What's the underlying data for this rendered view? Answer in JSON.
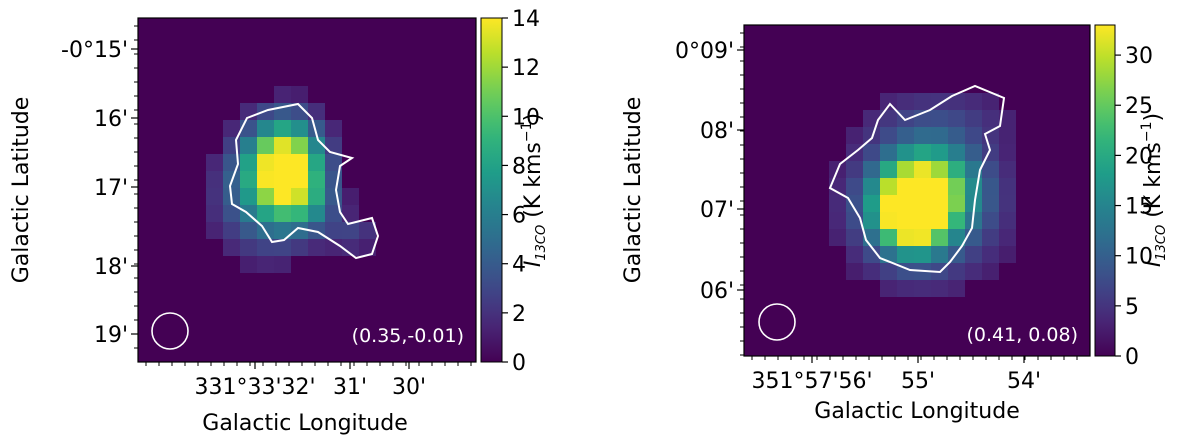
{
  "chart_data": [
    {
      "type": "heatmap",
      "xlabel": "Galactic Longitude",
      "ylabel": "Galactic Latitude",
      "colorbar_label": "I₁₃CO (K kms⁻¹)",
      "colorbar_label_parts": {
        "main": "I",
        "sub": "13CO",
        "unit": " (K kms",
        "sup": "−1",
        "close": ")"
      },
      "colormap": "viridis",
      "clim": [
        0,
        14
      ],
      "colorbar_ticks": [
        "0",
        "2",
        "4",
        "6",
        "8",
        "10",
        "12",
        "14"
      ],
      "x_ticks": [
        "331°33'32'",
        "31'",
        "30'"
      ],
      "y_ticks": [
        "-0°15'",
        "16'",
        "17'",
        "18'",
        "19'"
      ],
      "annotation": "(0.35,-0.01)",
      "beam": "circle",
      "peak_value": 14,
      "contour_color": "#ffffff"
    },
    {
      "type": "heatmap",
      "xlabel": "Galactic Longitude",
      "ylabel": "Galactic Latitude",
      "colorbar_label": "I₁₃CO (K kms⁻¹)",
      "colorbar_label_parts": {
        "main": "I",
        "sub": "13CO",
        "unit": " (K kms",
        "sup": "−1",
        "close": ")"
      },
      "colormap": "viridis",
      "clim": [
        0,
        33
      ],
      "colorbar_ticks": [
        "0",
        "5",
        "10",
        "15",
        "20",
        "25",
        "30"
      ],
      "x_ticks": [
        "351°57'56'",
        "55'",
        "54'"
      ],
      "y_ticks": [
        "0°09'",
        "08'",
        "07'",
        "06'"
      ],
      "annotation": "(0.41, 0.08)",
      "beam": "circle",
      "peak_value": 33,
      "contour_color": "#ffffff"
    }
  ]
}
